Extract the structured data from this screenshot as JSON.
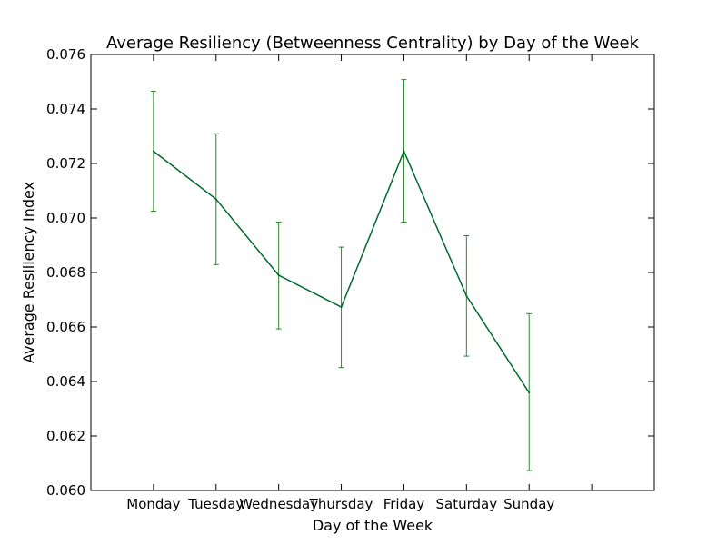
{
  "chart_data": {
    "type": "line",
    "title": "Average Resiliency (Betweenness Centrality) by Day of the Week",
    "xlabel": "Day of the Week",
    "ylabel": "Average Resiliency Index",
    "categories": [
      "Monday",
      "Tuesday",
      "Wednesday",
      "Thursday",
      "Friday",
      "Saturday",
      "Sunday"
    ],
    "x_range": [
      -1,
      8
    ],
    "ylim": [
      0.06,
      0.076
    ],
    "y_ticks": [
      0.06,
      0.062,
      0.064,
      0.066,
      0.068,
      0.07,
      0.072,
      0.074,
      0.076
    ],
    "y_tick_labels": [
      "0.060",
      "0.062",
      "0.064",
      "0.066",
      "0.068",
      "0.070",
      "0.072",
      "0.074",
      "0.076"
    ],
    "grid": false,
    "series": [
      {
        "values": [
          0.07245,
          0.07069,
          0.0679,
          0.06673,
          0.07245,
          0.06714,
          0.06359
        ],
        "error_low": [
          0.07025,
          0.06829,
          0.06593,
          0.06451,
          0.06985,
          0.06493,
          0.06073
        ],
        "error_high": [
          0.07465,
          0.07309,
          0.06985,
          0.06893,
          0.07508,
          0.06935,
          0.06649
        ],
        "color": "#006a2e",
        "error_color": "#2a8a2a"
      }
    ]
  }
}
